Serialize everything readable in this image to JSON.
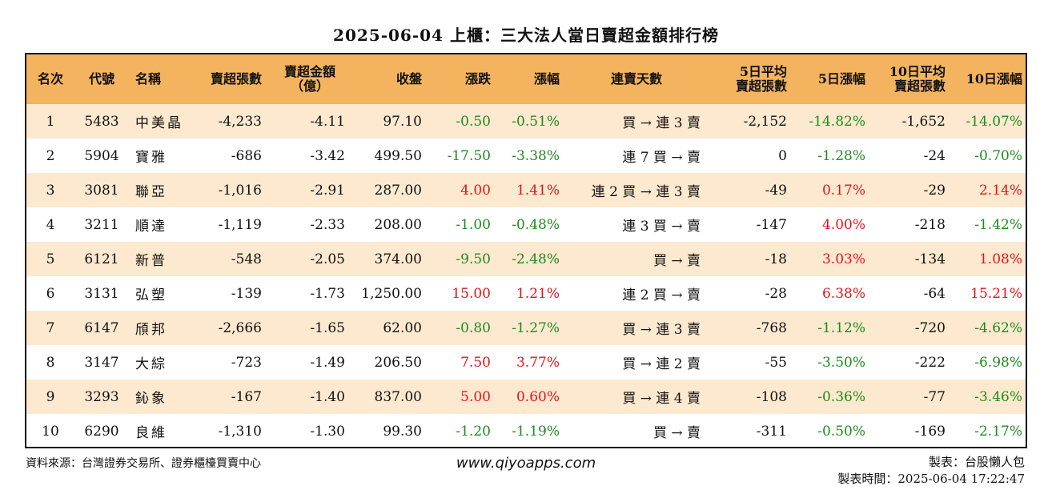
{
  "title": "2025-06-04 上櫃：三大法人當日賣超金額排行榜",
  "headers": {
    "rank": "名次",
    "code": "代號",
    "name": "名稱",
    "sell_shares": "賣超張數",
    "sell_amount_1": "賣超金額",
    "sell_amount_2": "（億）",
    "close": "收盤",
    "change": "漲跌",
    "change_pct": "漲幅",
    "consec": "連賣天數",
    "avg5_1": "5日平均",
    "avg5_2": "賣超張數",
    "pct5": "5日漲幅",
    "avg10_1": "10日平均",
    "avg10_2": "賣超張數",
    "pct10": "10日漲幅"
  },
  "rows": [
    {
      "rank": "1",
      "code": "5483",
      "name": "中美晶",
      "shares": "-4,233",
      "amount": "-4.11",
      "close": "97.10",
      "change": "-0.50",
      "change_pct": "-0.51%",
      "consec": "買 → 連 3 賣",
      "avg5": "-2,152",
      "pct5": "-14.82%",
      "avg10": "-1,652",
      "pct10": "-14.07%"
    },
    {
      "rank": "2",
      "code": "5904",
      "name": "寶雅",
      "shares": "-686",
      "amount": "-3.42",
      "close": "499.50",
      "change": "-17.50",
      "change_pct": "-3.38%",
      "consec": "連 7 買 → 賣",
      "avg5": "0",
      "pct5": "-1.28%",
      "avg10": "-24",
      "pct10": "-0.70%"
    },
    {
      "rank": "3",
      "code": "3081",
      "name": "聯亞",
      "shares": "-1,016",
      "amount": "-2.91",
      "close": "287.00",
      "change": "4.00",
      "change_pct": "1.41%",
      "consec": "連 2 買 → 連 3 賣",
      "avg5": "-49",
      "pct5": "0.17%",
      "avg10": "-29",
      "pct10": "2.14%"
    },
    {
      "rank": "4",
      "code": "3211",
      "name": "順達",
      "shares": "-1,119",
      "amount": "-2.33",
      "close": "208.00",
      "change": "-1.00",
      "change_pct": "-0.48%",
      "consec": "連 3 買 → 賣",
      "avg5": "-147",
      "pct5": "4.00%",
      "avg10": "-218",
      "pct10": "-1.42%"
    },
    {
      "rank": "5",
      "code": "6121",
      "name": "新普",
      "shares": "-548",
      "amount": "-2.05",
      "close": "374.00",
      "change": "-9.50",
      "change_pct": "-2.48%",
      "consec": "買 → 賣",
      "avg5": "-18",
      "pct5": "3.03%",
      "avg10": "-134",
      "pct10": "1.08%"
    },
    {
      "rank": "6",
      "code": "3131",
      "name": "弘塑",
      "shares": "-139",
      "amount": "-1.73",
      "close": "1,250.00",
      "change": "15.00",
      "change_pct": "1.21%",
      "consec": "連 2 買 → 賣",
      "avg5": "-28",
      "pct5": "6.38%",
      "avg10": "-64",
      "pct10": "15.21%"
    },
    {
      "rank": "7",
      "code": "6147",
      "name": "頎邦",
      "shares": "-2,666",
      "amount": "-1.65",
      "close": "62.00",
      "change": "-0.80",
      "change_pct": "-1.27%",
      "consec": "買 → 連 3 賣",
      "avg5": "-768",
      "pct5": "-1.12%",
      "avg10": "-720",
      "pct10": "-4.62%"
    },
    {
      "rank": "8",
      "code": "3147",
      "name": "大綜",
      "shares": "-723",
      "amount": "-1.49",
      "close": "206.50",
      "change": "7.50",
      "change_pct": "3.77%",
      "consec": "買 → 連 2 賣",
      "avg5": "-55",
      "pct5": "-3.50%",
      "avg10": "-222",
      "pct10": "-6.98%"
    },
    {
      "rank": "9",
      "code": "3293",
      "name": "鈊象",
      "shares": "-167",
      "amount": "-1.40",
      "close": "837.00",
      "change": "5.00",
      "change_pct": "0.60%",
      "consec": "買 → 連 4 賣",
      "avg5": "-108",
      "pct5": "-0.36%",
      "avg10": "-77",
      "pct10": "-3.46%"
    },
    {
      "rank": "10",
      "code": "6290",
      "name": "良維",
      "shares": "-1,310",
      "amount": "-1.30",
      "close": "99.30",
      "change": "-1.20",
      "change_pct": "-1.19%",
      "consec": "買 → 賣",
      "avg5": "-311",
      "pct5": "-0.50%",
      "avg10": "-169",
      "pct10": "-2.17%"
    }
  ],
  "footer": {
    "source": "資料來源：台灣證券交易所、證券櫃檯買賣中心",
    "site": "www.qiyoapps.com",
    "maker": "製表：台股懶人包",
    "time": "製表時間：2025-06-04 17:22:47"
  },
  "colors": {
    "header_bg": "#f4b35e",
    "stripe_bg": "#fde9cf",
    "up": "#e0141e",
    "down": "#1e8a1e"
  }
}
